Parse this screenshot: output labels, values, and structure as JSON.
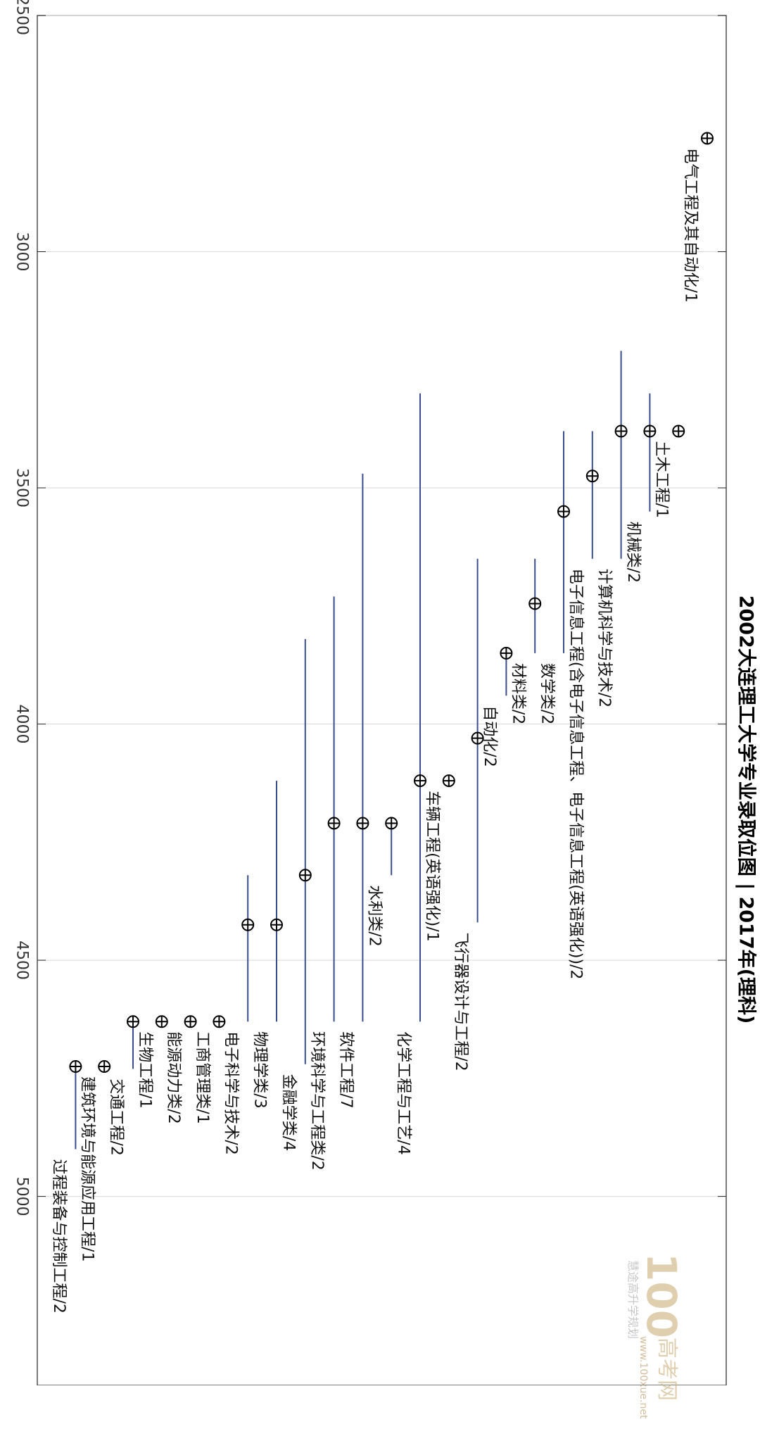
{
  "chart_data": {
    "type": "scatter",
    "title": "2002大连理工大学专业录取位图 | 2017年(理科)",
    "yticks": [
      "2500",
      "3000",
      "3500",
      "4000",
      "4500",
      "5000"
    ],
    "ylim": [
      2500,
      5400
    ],
    "x": [
      "电气工程及其自动化",
      "土木工程",
      "机械类",
      "计算机科学与技术",
      "电子信息工程(含电子信息工程、电子信息工程(英语强化))",
      "数学类",
      "材料类",
      "自动化",
      "飞行器设计与工程",
      "车辆工程(英语强化)",
      "化学工程与工艺",
      "水利类",
      "软件工程",
      "环境科学与工程类",
      "金融学类",
      "物理学类",
      "电子科学与技术",
      "工商管理类",
      "能源动力类",
      "生物工程",
      "交通工程",
      "建筑环境与能源应用工程",
      "过程装备与控制工程"
    ],
    "series": [
      {
        "labels": [
          "电气工程及其自动化/1",
          "土木工程/1",
          "机械类/2",
          "计算机科学与技术/2",
          "电子信息工程(含电子信息工程、电子信息工程(英语强化))/2",
          "数学类/2",
          "材料类/2",
          "自动化/2",
          "飞行器设计与工程/2",
          "车辆工程(英语强化)/1",
          "化学工程与工艺/4",
          "水利类/2",
          "软件工程/7",
          "环境科学与工程类/2",
          "金融学类/4",
          "物理学类/3",
          "电子科学与技术/2",
          "工商管理类/1",
          "能源动力类/2",
          "生物工程/1",
          "交通工程/2",
          "建筑环境与能源应用工程/1",
          "过程装备与控制工程/2"
        ],
        "values": [
          2760,
          3380,
          3380,
          3380,
          3475,
          3550,
          3745,
          3850,
          4030,
          4120,
          4120,
          4210,
          4210,
          4210,
          4320,
          4425,
          4425,
          4630,
          4630,
          4630,
          4630,
          4725,
          4725
        ],
        "min": [
          2760,
          3380,
          3300,
          3210,
          3380,
          3380,
          3650,
          3850,
          3650,
          4120,
          3300,
          4210,
          3470,
          3730,
          3820,
          4120,
          4320,
          4630,
          4630,
          4630,
          4630,
          4725,
          4725
        ],
        "max": [
          2760,
          3380,
          3550,
          3650,
          3650,
          3850,
          3850,
          3940,
          4420,
          4120,
          4630,
          4320,
          4630,
          4630,
          4720,
          4630,
          4630,
          4630,
          4630,
          4630,
          4730,
          4725,
          4900
        ]
      }
    ],
    "grid": true,
    "colors": {
      "range": "#3a4d8f",
      "marker": "#000000",
      "grid": "#d8d8d8",
      "axis": "#222222"
    }
  },
  "watermark": {
    "logo": "100",
    "site": "高考网",
    "url": "www.100xue.net",
    "wechat": "慧途高升学规划"
  }
}
